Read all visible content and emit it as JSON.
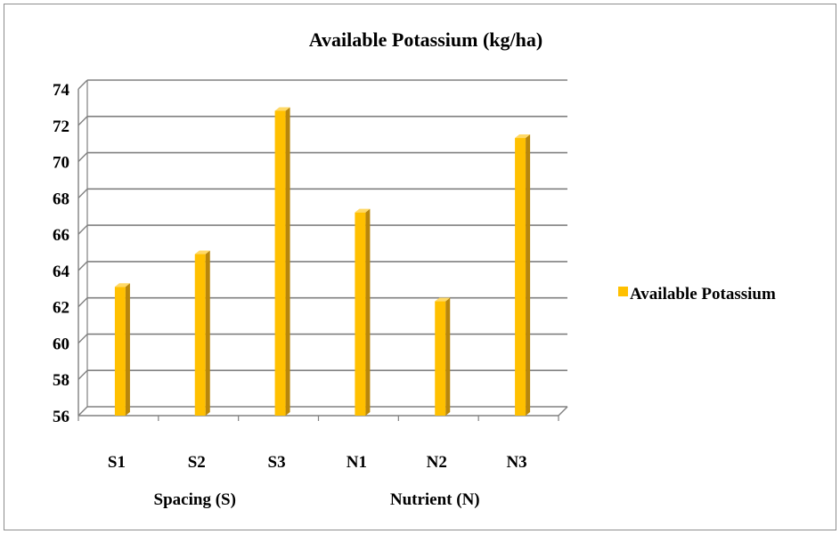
{
  "chart_data": {
    "type": "bar",
    "title": "Available Potassium (kg/ha)",
    "categories": [
      "S1",
      "S2",
      "S3",
      "N1",
      "N2",
      "N3"
    ],
    "series": [
      {
        "name": "Available Potassium",
        "values": [
          63.1,
          64.9,
          72.8,
          67.2,
          62.3,
          71.3
        ]
      }
    ],
    "groups": [
      "Spacing (S)",
      "Nutrient (N)"
    ],
    "ylim": [
      56,
      74
    ],
    "yticks": [
      56,
      58,
      60,
      62,
      64,
      66,
      68,
      70,
      72,
      74
    ],
    "grid": true,
    "legend_position": "right",
    "colors": {
      "bar_front": "#FFC000",
      "bar_side": "#B8860B",
      "bar_top": "#FFD966",
      "grid": "#808080"
    }
  }
}
